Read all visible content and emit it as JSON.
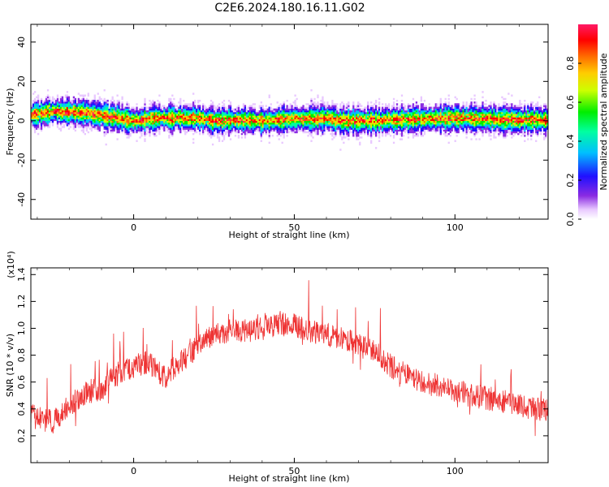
{
  "title": "C2E6.2024.180.16.11.G02",
  "chart_data": [
    {
      "type": "heatmap",
      "xlabel": "Height of straight line (km)",
      "ylabel": "Frequency (Hz)",
      "xlim": [
        -32,
        129
      ],
      "ylim": [
        -50,
        49
      ],
      "xticks": [
        0,
        50,
        100
      ],
      "yticks": [
        -40,
        -20,
        0,
        20,
        40
      ],
      "ridge_frequency": [
        [
          -32,
          3
        ],
        [
          -28,
          4
        ],
        [
          -24,
          5
        ],
        [
          -20,
          4.5
        ],
        [
          -15,
          4
        ],
        [
          -10,
          3
        ],
        [
          -5,
          1.5
        ],
        [
          0,
          0
        ],
        [
          3,
          0.5
        ],
        [
          8,
          1.5
        ],
        [
          15,
          1.5
        ],
        [
          20,
          1.5
        ],
        [
          25,
          0
        ],
        [
          30,
          0.5
        ],
        [
          40,
          0
        ],
        [
          50,
          1
        ],
        [
          55,
          1
        ],
        [
          60,
          1.5
        ],
        [
          65,
          0
        ],
        [
          70,
          0
        ],
        [
          80,
          0.5
        ],
        [
          90,
          1
        ],
        [
          100,
          1.5
        ],
        [
          110,
          1
        ],
        [
          120,
          0.5
        ],
        [
          129,
          0.5
        ]
      ],
      "colorbar": {
        "label": "Normalized spectral amplitude",
        "range": [
          0.0,
          1.0
        ],
        "ticks": [
          0.0,
          0.2,
          0.4,
          0.6,
          0.8
        ],
        "tick_labels": [
          "0.0",
          "0.2",
          "0.4",
          "0.6",
          "0.8"
        ]
      }
    },
    {
      "type": "line",
      "xlabel": "Height of straight line (km)",
      "ylabel": "SNR (10 * v/v)",
      "y_multiplier": "(x10⁴)",
      "xlim": [
        -32,
        129
      ],
      "ylim": [
        0.0,
        1.45
      ],
      "xticks": [
        0,
        50,
        100
      ],
      "yticks": [
        0.2,
        0.4,
        0.6,
        0.8,
        1.0,
        1.2,
        1.4
      ],
      "ytick_labels": [
        "0.2",
        "0.4",
        "0.6",
        "0.8",
        "1.0",
        "1.2",
        "1.4"
      ],
      "series": [
        {
          "color": "#ee3333",
          "trend": [
            [
              -32,
              0.35
            ],
            [
              -25,
              0.3
            ],
            [
              -20,
              0.42
            ],
            [
              -15,
              0.52
            ],
            [
              -10,
              0.55
            ],
            [
              -5,
              0.66
            ],
            [
              0,
              0.72
            ],
            [
              5,
              0.75
            ],
            [
              10,
              0.62
            ],
            [
              12,
              0.7
            ],
            [
              15,
              0.75
            ],
            [
              20,
              0.87
            ],
            [
              25,
              0.95
            ],
            [
              30,
              0.98
            ],
            [
              35,
              0.98
            ],
            [
              40,
              1.0
            ],
            [
              45,
              1.03
            ],
            [
              50,
              1.03
            ],
            [
              55,
              0.98
            ],
            [
              60,
              0.95
            ],
            [
              65,
              0.92
            ],
            [
              70,
              0.88
            ],
            [
              75,
              0.82
            ],
            [
              80,
              0.72
            ],
            [
              85,
              0.65
            ],
            [
              90,
              0.6
            ],
            [
              95,
              0.57
            ],
            [
              100,
              0.53
            ],
            [
              105,
              0.5
            ],
            [
              110,
              0.48
            ],
            [
              115,
              0.46
            ],
            [
              120,
              0.43
            ],
            [
              125,
              0.4
            ],
            [
              129,
              0.38
            ]
          ]
        }
      ]
    }
  ]
}
